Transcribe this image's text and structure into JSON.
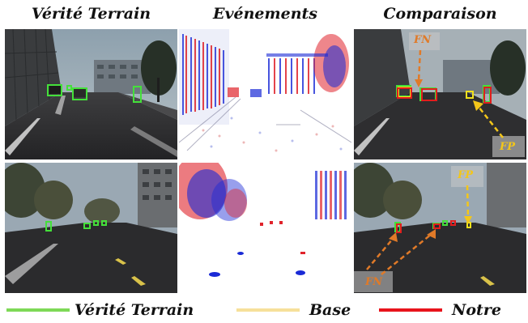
{
  "columns": {
    "ground_truth": "Vérité Terrain",
    "events": "Evénements",
    "comparison": "Comparaison"
  },
  "annotations": {
    "fn": "FN",
    "fp": "FP"
  },
  "legend": [
    {
      "label": "Vérité Terrain",
      "color": "#7ed957"
    },
    {
      "label": "Base",
      "color": "#f6e09a"
    },
    {
      "label": "Notre",
      "color": "#e8141c"
    }
  ],
  "colors": {
    "ground_truth_box": "#44e03a",
    "base_box": "#f2e21c",
    "our_box": "#e21d1d",
    "fn_arrow": "#e07a28",
    "fp_arrow": "#f3c61a"
  }
}
